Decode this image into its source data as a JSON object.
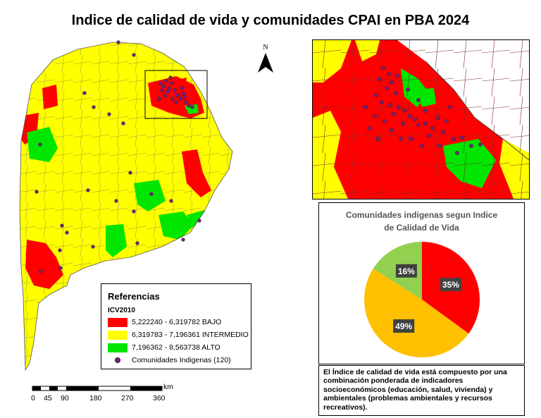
{
  "title": "Indice de calidad de vida y comunidades CPAI en PBA 2024",
  "north_label": "N",
  "legend": {
    "title": "Referencias",
    "subtitle": "ICV2010",
    "items": [
      {
        "label": "5,222240 - 6,319782 BAJO",
        "color": "#ff0000"
      },
      {
        "label": "6,319783 - 7,196361 INTERMEDIO",
        "color": "#ffff00"
      },
      {
        "label": "7,196362 - 8,563738 ALTO",
        "color": "#00e600"
      }
    ],
    "point_label": "Comunidades Indigenas (120)",
    "point_color": "#7b1f8a"
  },
  "chart_data": {
    "type": "pie",
    "title_line1": "Comunidades indigenas segun Indice",
    "title_line2": "de Calidad de Vida",
    "slices": [
      {
        "label": "35%",
        "value": 35,
        "color": "#ff0000"
      },
      {
        "label": "49%",
        "value": 49,
        "color": "#ffc000"
      },
      {
        "label": "16%",
        "value": 16,
        "color": "#92d050"
      }
    ]
  },
  "note": "El Índice de calidad de vida está compuesto por una combinación ponderada de indicadores socioeconómicos (educación, salud, vivienda) y ambientales (problemas ambientales y recursos recreativos).",
  "scale": {
    "unit": "km",
    "ticks": [
      "0",
      "45",
      "90",
      "180",
      "270",
      "360"
    ]
  }
}
